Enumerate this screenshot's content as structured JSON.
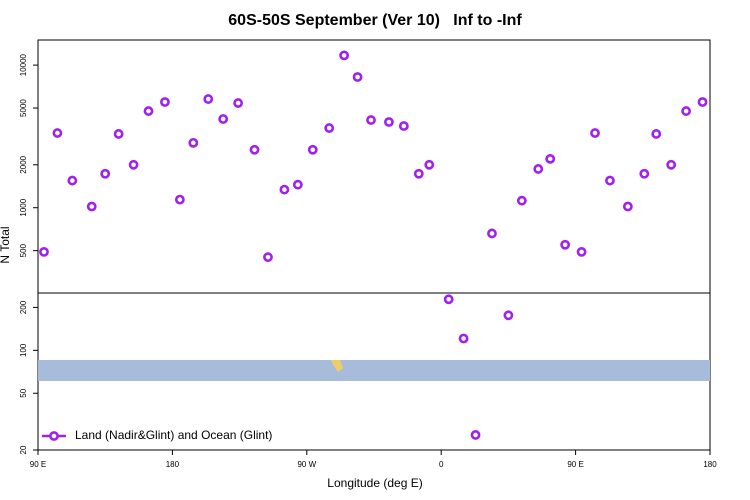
{
  "chart_data": {
    "type": "scatter",
    "title": "60S-50S September (Ver 10)   Inf to -Inf",
    "x_label": "Longitude (deg E)",
    "y_label": "N Total",
    "log_y": true,
    "legend": "bottom-left",
    "xlim": [
      90,
      540
    ],
    "xticks": [
      {
        "value": 90,
        "label": "90 E"
      },
      {
        "value": 180,
        "label": "180"
      },
      {
        "value": 270,
        "label": "90 W"
      },
      {
        "value": 360,
        "label": "0"
      },
      {
        "value": 450,
        "label": "90 E"
      },
      {
        "value": 540,
        "label": "180"
      }
    ],
    "ylim": [
      20,
      15000
    ],
    "yticks": [
      20,
      50,
      100,
      200,
      500,
      1000,
      2000,
      5000,
      10000
    ],
    "series": [
      {
        "name": "Land (Nadir&Glint) and Ocean (Glint)",
        "color": "#a020f0",
        "x": [
          94,
          103,
          113,
          126,
          135,
          144,
          154,
          164,
          175,
          185,
          194,
          204,
          214,
          224,
          235,
          244,
          255,
          264,
          274,
          285,
          295,
          304,
          313,
          325,
          335,
          345,
          352,
          365,
          375,
          383,
          394,
          405,
          414,
          425,
          433,
          443,
          454,
          463,
          473,
          485,
          496,
          504,
          514,
          524,
          535
        ],
        "values": [
          490,
          3340,
          1550,
          1020,
          1730,
          3290,
          2000,
          4760,
          5510,
          1140,
          2850,
          5780,
          4190,
          5420,
          2550,
          450,
          1340,
          1450,
          2550,
          3620,
          11700,
          8250,
          4120,
          3990,
          3740,
          1730,
          2000,
          228,
          121,
          25.5,
          660,
          176,
          1120,
          1870,
          2200,
          550,
          490,
          3340,
          1550,
          1020,
          1730,
          3290,
          2000,
          4760,
          5510
        ]
      }
    ]
  }
}
